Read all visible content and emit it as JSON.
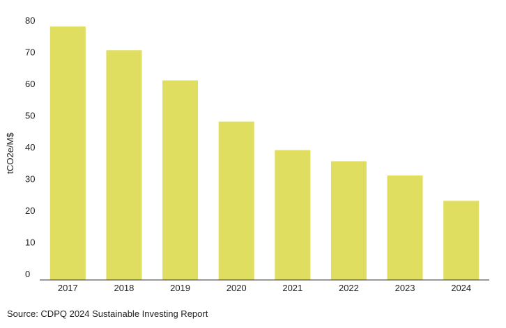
{
  "chart_data": {
    "type": "bar",
    "title": "",
    "xlabel": "",
    "ylabel": "tCO2e/M$",
    "categories": [
      "2017",
      "2018",
      "2019",
      "2020",
      "2021",
      "2022",
      "2023",
      "2024"
    ],
    "values": [
      78,
      70.5,
      61,
      48,
      39,
      35.5,
      31,
      23
    ],
    "ylim": [
      0,
      80
    ],
    "yticks": [
      0,
      10,
      20,
      30,
      40,
      50,
      60,
      70,
      80
    ],
    "grid": false,
    "legend": "none",
    "bar_color": "#e0de60",
    "axis_color": "#333333"
  },
  "source": "Source: CDPQ 2024 Sustainable Investing Report"
}
